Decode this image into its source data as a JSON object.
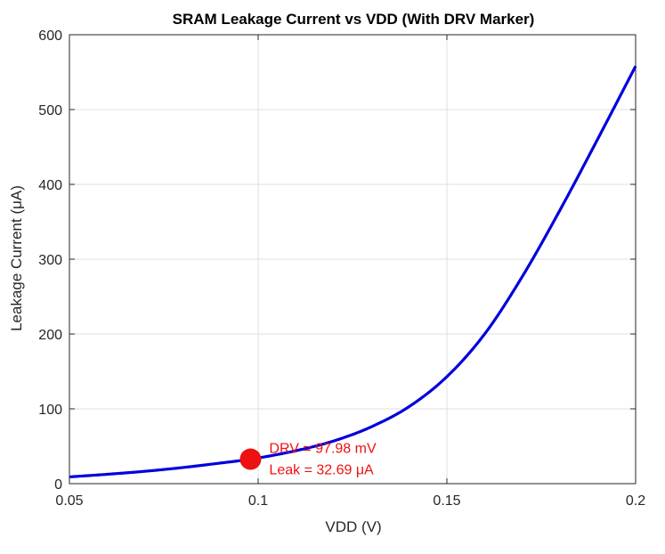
{
  "chart_data": {
    "type": "line",
    "title": "SRAM Leakage Current vs VDD (With DRV Marker)",
    "xlabel": "VDD (V)",
    "ylabel": "Leakage Current (μA)",
    "xlim": [
      0.05,
      0.2
    ],
    "ylim": [
      0,
      600
    ],
    "xticks": [
      0.05,
      0.1,
      0.15,
      0.2
    ],
    "xtick_labels": [
      "0.05",
      "0.1",
      "0.15",
      "0.2"
    ],
    "yticks": [
      0,
      100,
      200,
      300,
      400,
      500,
      600
    ],
    "ytick_labels": [
      "0",
      "100",
      "200",
      "300",
      "400",
      "500",
      "600"
    ],
    "grid": true,
    "legend": "none",
    "series": [
      {
        "color": "#0000dd",
        "x": [
          0.05,
          0.06,
          0.07,
          0.08,
          0.09,
          0.09798,
          0.11,
          0.12,
          0.13,
          0.14,
          0.15,
          0.16,
          0.17,
          0.18,
          0.19,
          0.2
        ],
        "y": [
          9,
          12.5,
          16.5,
          21.5,
          27.5,
          32.69,
          44,
          57,
          76,
          103,
          143,
          200,
          277,
          366,
          461,
          558
        ]
      }
    ],
    "marker": {
      "x": 0.09798,
      "y": 32.69,
      "color": "#ee1111",
      "label_lines": [
        "DRV = 97.98 mV",
        "Leak = 32.69 μA"
      ]
    }
  }
}
